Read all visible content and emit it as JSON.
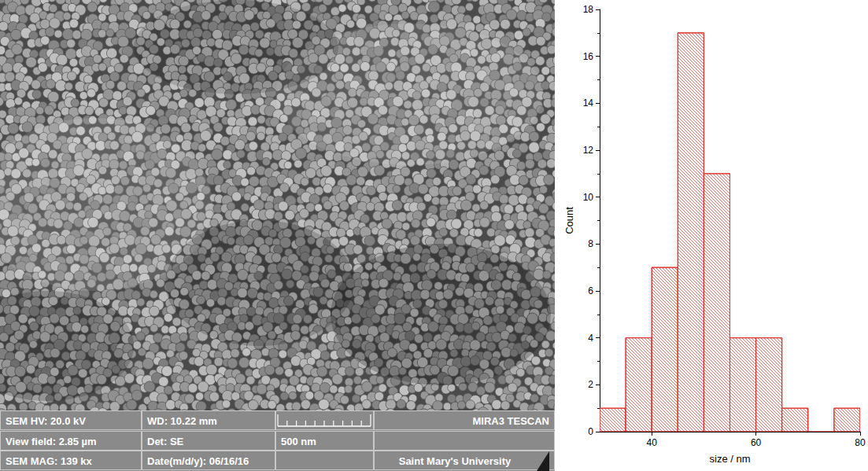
{
  "chart_data": {
    "type": "histogram",
    "bins": [
      30,
      35,
      40,
      45,
      50,
      55,
      60,
      65,
      70,
      75,
      80
    ],
    "counts": [
      1,
      4,
      7,
      17,
      11,
      4,
      4,
      1,
      0,
      1
    ],
    "color": "#e0312b",
    "xlabel": "size / nm",
    "ylabel": "Count",
    "xlim": [
      30,
      80
    ],
    "xticks": [
      40,
      60,
      80
    ],
    "ylim": [
      0,
      18
    ],
    "yticks": [
      0,
      2,
      4,
      6,
      8,
      10,
      12,
      14,
      16,
      18
    ],
    "grid": false
  },
  "micrograph": {
    "info_bar": {
      "hv": "SEM HV: 20.0 kV",
      "wd": "WD: 10.22 mm",
      "brand": "MIRA3 TESCAN",
      "view_field": "View field: 2.85 µm",
      "detector": "Det: SE",
      "scale_bar": "500 nm",
      "magnification": "SEM MAG: 139 kx",
      "date": "Date(m/d/y): 06/16/16",
      "institution": "Saint Mary's University"
    }
  }
}
